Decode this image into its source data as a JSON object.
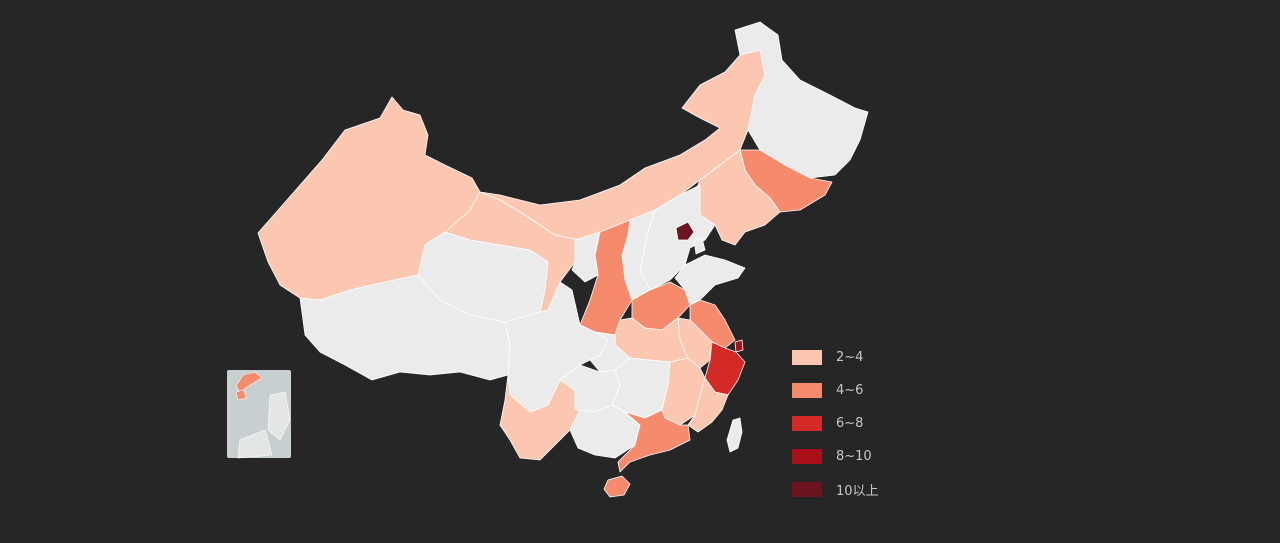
{
  "map": {
    "type": "choropleth",
    "region": "China provinces",
    "background_color": "#262626",
    "no_data_color": "#ecebeb",
    "border_color": "#ffffff",
    "inset_south_china_sea_color": "#c8cfd0"
  },
  "legend": {
    "items": [
      {
        "label": "2~4",
        "color": "#fbc7b0"
      },
      {
        "label": "4~6",
        "color": "#f68a6c"
      },
      {
        "label": "6~8",
        "color": "#d42a27"
      },
      {
        "label": "8~10",
        "color": "#a80f18"
      },
      {
        "label": "10以上",
        "color": "#6c1521"
      }
    ]
  },
  "regions": [
    {
      "name": "Xinjiang",
      "bin": 0
    },
    {
      "name": "Tibet",
      "bin": null
    },
    {
      "name": "Qinghai",
      "bin": null
    },
    {
      "name": "Gansu",
      "bin": 0
    },
    {
      "name": "Inner Mongolia",
      "bin": 0
    },
    {
      "name": "Heilongjiang",
      "bin": null
    },
    {
      "name": "Jilin",
      "bin": 1
    },
    {
      "name": "Liaoning",
      "bin": 0
    },
    {
      "name": "Hebei",
      "bin": null
    },
    {
      "name": "Beijing",
      "bin": 4
    },
    {
      "name": "Tianjin",
      "bin": null
    },
    {
      "name": "Shanxi",
      "bin": null
    },
    {
      "name": "Shaanxi",
      "bin": 1
    },
    {
      "name": "Ningxia",
      "bin": null
    },
    {
      "name": "Henan",
      "bin": 1
    },
    {
      "name": "Shandong",
      "bin": null
    },
    {
      "name": "Jiangsu",
      "bin": 1
    },
    {
      "name": "Anhui",
      "bin": 0
    },
    {
      "name": "Shanghai",
      "bin": 3
    },
    {
      "name": "Zhejiang",
      "bin": 2
    },
    {
      "name": "Hubei",
      "bin": 0
    },
    {
      "name": "Sichuan",
      "bin": null
    },
    {
      "name": "Chongqing",
      "bin": null
    },
    {
      "name": "Yunnan",
      "bin": 0
    },
    {
      "name": "Guizhou",
      "bin": null
    },
    {
      "name": "Hunan",
      "bin": null
    },
    {
      "name": "Jiangxi",
      "bin": 0
    },
    {
      "name": "Fujian",
      "bin": 0
    },
    {
      "name": "Guangxi",
      "bin": null
    },
    {
      "name": "Guangdong",
      "bin": 1
    },
    {
      "name": "Hainan",
      "bin": 1
    },
    {
      "name": "Taiwan",
      "bin": null
    }
  ]
}
